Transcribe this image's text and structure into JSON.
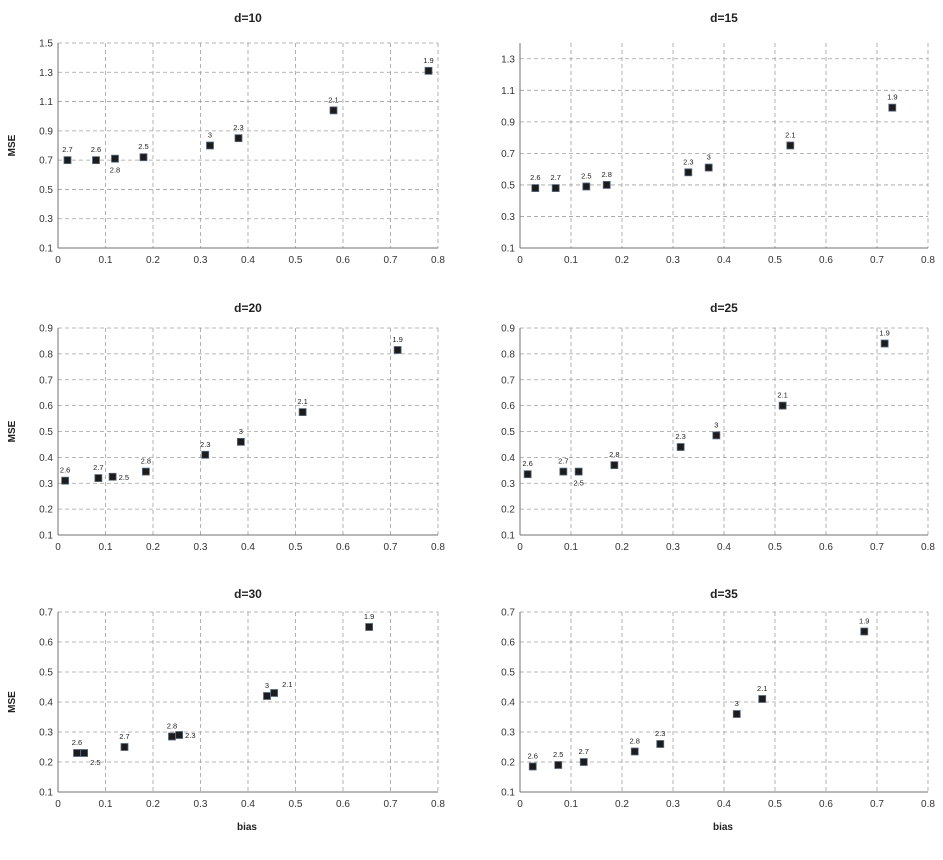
{
  "chart_data": [
    {
      "type": "scatter",
      "title": "d=10",
      "xlabel": "",
      "ylabel": "MSE",
      "xlim": [
        0,
        0.8
      ],
      "ylim": [
        0.1,
        1.5
      ],
      "xticks": [
        "0",
        "0.1",
        "0.2",
        "0.3",
        "0.4",
        "0.5",
        "0.6",
        "0.7",
        "0.8"
      ],
      "yticks": [
        "0.1",
        "0.3",
        "0.5",
        "0.7",
        "0.9",
        "1.1",
        "1.3",
        "1.5"
      ],
      "grid": true,
      "points": [
        {
          "x": 0.02,
          "y": 0.7,
          "label": "2.7",
          "pos": "above"
        },
        {
          "x": 0.08,
          "y": 0.7,
          "label": "2.6",
          "pos": "above"
        },
        {
          "x": 0.12,
          "y": 0.71,
          "label": "2.8",
          "pos": "below"
        },
        {
          "x": 0.18,
          "y": 0.72,
          "label": "2.5",
          "pos": "above"
        },
        {
          "x": 0.32,
          "y": 0.8,
          "label": "3",
          "pos": "above"
        },
        {
          "x": 0.38,
          "y": 0.85,
          "label": "2.3",
          "pos": "above"
        },
        {
          "x": 0.58,
          "y": 1.04,
          "label": "2.1",
          "pos": "above"
        },
        {
          "x": 0.78,
          "y": 1.31,
          "label": "1.9",
          "pos": "above"
        }
      ]
    },
    {
      "type": "scatter",
      "title": "d=15",
      "xlabel": "",
      "ylabel": "",
      "xlim": [
        0,
        0.8
      ],
      "ylim": [
        0.1,
        1.4
      ],
      "xticks": [
        "0",
        "0.1",
        "0.2",
        "0.3",
        "0.4",
        "0.5",
        "0.6",
        "0.7",
        "0.8"
      ],
      "yticks": [
        "0.1",
        "0.3",
        "0.5",
        "0.7",
        "0.9",
        "1.1",
        "1.3"
      ],
      "grid": true,
      "points": [
        {
          "x": 0.03,
          "y": 0.48,
          "label": "2.6",
          "pos": "above"
        },
        {
          "x": 0.07,
          "y": 0.48,
          "label": "2.7",
          "pos": "above"
        },
        {
          "x": 0.13,
          "y": 0.49,
          "label": "2.5",
          "pos": "above"
        },
        {
          "x": 0.17,
          "y": 0.5,
          "label": "2.8",
          "pos": "above"
        },
        {
          "x": 0.33,
          "y": 0.58,
          "label": "2.3",
          "pos": "above"
        },
        {
          "x": 0.37,
          "y": 0.61,
          "label": "3",
          "pos": "above"
        },
        {
          "x": 0.53,
          "y": 0.75,
          "label": "2.1",
          "pos": "above"
        },
        {
          "x": 0.73,
          "y": 0.99,
          "label": "1.9",
          "pos": "above"
        }
      ]
    },
    {
      "type": "scatter",
      "title": "d=20",
      "xlabel": "",
      "ylabel": "MSE",
      "xlim": [
        0,
        0.8
      ],
      "ylim": [
        0.1,
        0.9
      ],
      "xticks": [
        "0",
        "0.1",
        "0.2",
        "0.3",
        "0.4",
        "0.5",
        "0.6",
        "0.7",
        "0.8"
      ],
      "yticks": [
        "0.1",
        "0.2",
        "0.3",
        "0.4",
        "0.5",
        "0.6",
        "0.7",
        "0.8",
        "0.9"
      ],
      "grid": true,
      "points": [
        {
          "x": 0.015,
          "y": 0.31,
          "label": "2.6",
          "pos": "above"
        },
        {
          "x": 0.085,
          "y": 0.32,
          "label": "2.7",
          "pos": "above"
        },
        {
          "x": 0.115,
          "y": 0.325,
          "label": "2.5",
          "pos": "right"
        },
        {
          "x": 0.185,
          "y": 0.345,
          "label": "2.8",
          "pos": "above"
        },
        {
          "x": 0.31,
          "y": 0.41,
          "label": "2.3",
          "pos": "above"
        },
        {
          "x": 0.385,
          "y": 0.46,
          "label": "3",
          "pos": "above"
        },
        {
          "x": 0.515,
          "y": 0.575,
          "label": "2.1",
          "pos": "above"
        },
        {
          "x": 0.715,
          "y": 0.815,
          "label": "1.9",
          "pos": "above"
        }
      ]
    },
    {
      "type": "scatter",
      "title": "d=25",
      "xlabel": "",
      "ylabel": "",
      "xlim": [
        0,
        0.8
      ],
      "ylim": [
        0.1,
        0.9
      ],
      "xticks": [
        "0",
        "0.1",
        "0.2",
        "0.3",
        "0.4",
        "0.5",
        "0.6",
        "0.7",
        "0.8"
      ],
      "yticks": [
        "0.1",
        "0.2",
        "0.3",
        "0.4",
        "0.5",
        "0.6",
        "0.7",
        "0.8",
        "0.9"
      ],
      "grid": true,
      "points": [
        {
          "x": 0.015,
          "y": 0.335,
          "label": "2.6",
          "pos": "above"
        },
        {
          "x": 0.085,
          "y": 0.345,
          "label": "2.7",
          "pos": "above"
        },
        {
          "x": 0.115,
          "y": 0.345,
          "label": "2.5",
          "pos": "below"
        },
        {
          "x": 0.185,
          "y": 0.37,
          "label": "2.8",
          "pos": "above"
        },
        {
          "x": 0.315,
          "y": 0.44,
          "label": "2.3",
          "pos": "above"
        },
        {
          "x": 0.385,
          "y": 0.485,
          "label": "3",
          "pos": "above"
        },
        {
          "x": 0.515,
          "y": 0.6,
          "label": "2.1",
          "pos": "above"
        },
        {
          "x": 0.715,
          "y": 0.84,
          "label": "1.9",
          "pos": "above"
        }
      ]
    },
    {
      "type": "scatter",
      "title": "d=30",
      "xlabel": "bias",
      "ylabel": "MSE",
      "xlim": [
        0,
        0.8
      ],
      "ylim": [
        0.1,
        0.7
      ],
      "xticks": [
        "0",
        "0.1",
        "0.2",
        "0.3",
        "0.4",
        "0.5",
        "0.6",
        "0.7",
        "0.8"
      ],
      "yticks": [
        "0.1",
        "0.2",
        "0.3",
        "0.4",
        "0.5",
        "0.6",
        "0.7"
      ],
      "grid": true,
      "points": [
        {
          "x": 0.04,
          "y": 0.23,
          "label": "2.6",
          "pos": "above"
        },
        {
          "x": 0.055,
          "y": 0.23,
          "label": "2.5",
          "pos": "below-right"
        },
        {
          "x": 0.14,
          "y": 0.25,
          "label": "2.7",
          "pos": "above"
        },
        {
          "x": 0.24,
          "y": 0.285,
          "label": "2.8",
          "pos": "above"
        },
        {
          "x": 0.255,
          "y": 0.29,
          "label": "2.3",
          "pos": "right"
        },
        {
          "x": 0.44,
          "y": 0.42,
          "label": "3",
          "pos": "above"
        },
        {
          "x": 0.455,
          "y": 0.43,
          "label": "2.1",
          "pos": "above-right"
        },
        {
          "x": 0.655,
          "y": 0.65,
          "label": "1.9",
          "pos": "above"
        }
      ]
    },
    {
      "type": "scatter",
      "title": "d=35",
      "xlabel": "bias",
      "ylabel": "",
      "xlim": [
        0,
        0.8
      ],
      "ylim": [
        0.1,
        0.7
      ],
      "xticks": [
        "0",
        "0.1",
        "0.2",
        "0.3",
        "0.4",
        "0.5",
        "0.6",
        "0.7",
        "0.8"
      ],
      "yticks": [
        "0.1",
        "0.2",
        "0.3",
        "0.4",
        "0.5",
        "0.6",
        "0.7"
      ],
      "grid": true,
      "points": [
        {
          "x": 0.025,
          "y": 0.185,
          "label": "2.6",
          "pos": "above"
        },
        {
          "x": 0.075,
          "y": 0.19,
          "label": "2.5",
          "pos": "above"
        },
        {
          "x": 0.125,
          "y": 0.2,
          "label": "2.7",
          "pos": "above"
        },
        {
          "x": 0.225,
          "y": 0.235,
          "label": "2.8",
          "pos": "above"
        },
        {
          "x": 0.275,
          "y": 0.26,
          "label": "2.3",
          "pos": "above"
        },
        {
          "x": 0.425,
          "y": 0.36,
          "label": "3",
          "pos": "above"
        },
        {
          "x": 0.475,
          "y": 0.41,
          "label": "2.1",
          "pos": "above"
        },
        {
          "x": 0.675,
          "y": 0.635,
          "label": "1.9",
          "pos": "above"
        }
      ]
    }
  ]
}
